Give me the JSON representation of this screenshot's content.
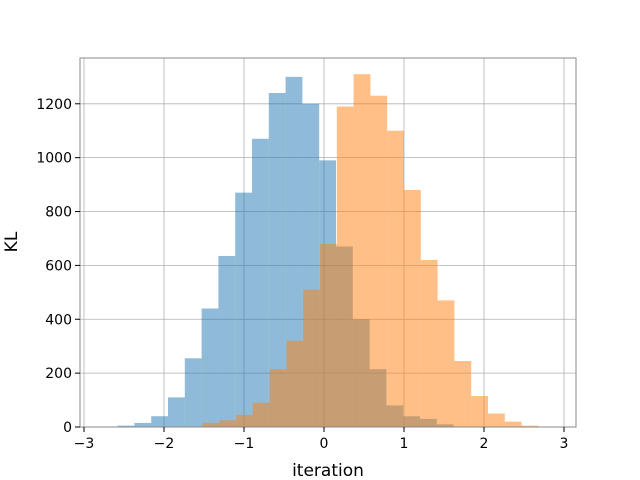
{
  "chart_data": {
    "type": "bar",
    "xlabel": "iteration",
    "ylabel": "KL",
    "xlim": [
      -3.05,
      3.15
    ],
    "ylim": [
      0,
      1370
    ],
    "xticks": [
      -3,
      -2,
      -1,
      0,
      1,
      2,
      3
    ],
    "yticks": [
      0,
      200,
      400,
      600,
      800,
      1000,
      1200
    ],
    "grid": true,
    "bin_width": 0.21,
    "series": [
      {
        "color": "#1f77b4",
        "opacity": 0.5,
        "bins": [
          {
            "x0": -2.58,
            "value": 5
          },
          {
            "x0": -2.37,
            "value": 15
          },
          {
            "x0": -2.16,
            "value": 40
          },
          {
            "x0": -1.95,
            "value": 110
          },
          {
            "x0": -1.74,
            "value": 255
          },
          {
            "x0": -1.53,
            "value": 440
          },
          {
            "x0": -1.32,
            "value": 635
          },
          {
            "x0": -1.11,
            "value": 870
          },
          {
            "x0": -0.9,
            "value": 1070
          },
          {
            "x0": -0.69,
            "value": 1240
          },
          {
            "x0": -0.48,
            "value": 1300
          },
          {
            "x0": -0.27,
            "value": 1200
          },
          {
            "x0": -0.06,
            "value": 990
          },
          {
            "x0": 0.15,
            "value": 670
          },
          {
            "x0": 0.36,
            "value": 400
          },
          {
            "x0": 0.57,
            "value": 215
          },
          {
            "x0": 0.78,
            "value": 80
          },
          {
            "x0": 0.99,
            "value": 40
          },
          {
            "x0": 1.2,
            "value": 30
          },
          {
            "x0": 1.41,
            "value": 10
          }
        ]
      },
      {
        "color": "#ff7f0e",
        "opacity": 0.5,
        "bins": [
          {
            "x0": -1.52,
            "value": 15
          },
          {
            "x0": -1.31,
            "value": 25
          },
          {
            "x0": -1.1,
            "value": 45
          },
          {
            "x0": -0.89,
            "value": 90
          },
          {
            "x0": -0.68,
            "value": 215
          },
          {
            "x0": -0.47,
            "value": 320
          },
          {
            "x0": -0.26,
            "value": 510
          },
          {
            "x0": -0.05,
            "value": 680
          },
          {
            "x0": 0.16,
            "value": 1190
          },
          {
            "x0": 0.37,
            "value": 1310
          },
          {
            "x0": 0.58,
            "value": 1230
          },
          {
            "x0": 0.79,
            "value": 1100
          },
          {
            "x0": 1.0,
            "value": 880
          },
          {
            "x0": 1.21,
            "value": 620
          },
          {
            "x0": 1.42,
            "value": 470
          },
          {
            "x0": 1.63,
            "value": 245
          },
          {
            "x0": 1.84,
            "value": 115
          },
          {
            "x0": 2.05,
            "value": 50
          },
          {
            "x0": 2.26,
            "value": 20
          },
          {
            "x0": 2.47,
            "value": 5
          }
        ]
      }
    ]
  }
}
